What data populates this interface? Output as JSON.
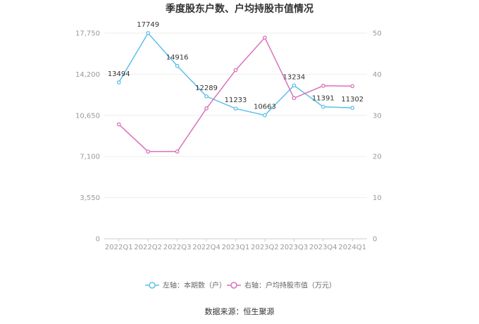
{
  "chart_data": {
    "type": "line",
    "title": "季度股东户数、户均持股市值情况",
    "categories": [
      "2022Q1",
      "2022Q2",
      "2022Q3",
      "2022Q4",
      "2023Q1",
      "2023Q2",
      "2023Q3",
      "2023Q4",
      "2024Q1"
    ],
    "series": [
      {
        "name": "左轴：本期数（户）",
        "axis": "left",
        "color": "#5bc0eb",
        "values": [
          13494,
          17749,
          14916,
          12289,
          11233,
          10663,
          13234,
          11391,
          11302
        ],
        "labels": [
          "13494",
          "17749",
          "14916",
          "12289",
          "11233",
          "10663",
          "13234",
          "11391",
          "11302"
        ]
      },
      {
        "name": "右轴：户均持股市值（万元）",
        "axis": "right",
        "color": "#d872b8",
        "values": [
          27.8,
          21.2,
          21.2,
          31.7,
          41.0,
          48.9,
          34.2,
          37.2,
          37.1
        ]
      }
    ],
    "y_left": {
      "min": 0,
      "max": 17750,
      "ticks": [
        0,
        3550,
        7100,
        10650,
        14200,
        17750
      ],
      "tick_labels": [
        "0",
        "3,550",
        "7,100",
        "10,650",
        "14,200",
        "17,750"
      ]
    },
    "y_right": {
      "min": 0,
      "max": 50,
      "ticks": [
        0,
        10,
        20,
        30,
        40,
        50
      ],
      "tick_labels": [
        "0",
        "10",
        "20",
        "30",
        "40",
        "50"
      ]
    },
    "grid": true,
    "legend_position": "bottom-center"
  },
  "source": "数据来源：恒生聚源"
}
